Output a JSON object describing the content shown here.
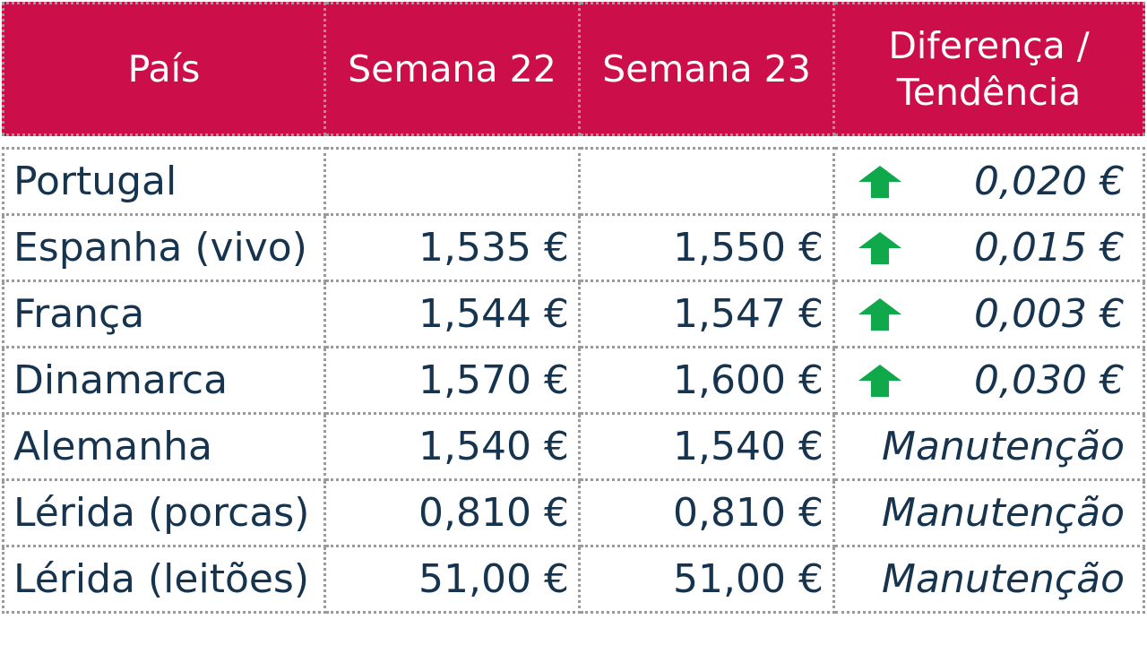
{
  "table": {
    "headers": {
      "country": "País",
      "week22": "Semana 22",
      "week23": "Semana 23",
      "trend_line1": "Diferença /",
      "trend_line2": "Tendência"
    },
    "rows": [
      {
        "country": "Portugal",
        "week22": "",
        "week23": "",
        "trend": "0,020 €",
        "direction": "up",
        "arrow_icon": "up-arrow-icon"
      },
      {
        "country": "Espanha (vivo)",
        "week22": "1,535 €",
        "week23": "1,550 €",
        "trend": "0,015 €",
        "direction": "up",
        "arrow_icon": "up-arrow-icon"
      },
      {
        "country": "França",
        "week22": "1,544 €",
        "week23": "1,547 €",
        "trend": "0,003 €",
        "direction": "up",
        "arrow_icon": "up-arrow-icon"
      },
      {
        "country": "Dinamarca",
        "week22": "1,570 €",
        "week23": "1,600 €",
        "trend": "0,030 €",
        "direction": "up",
        "arrow_icon": "up-arrow-icon"
      },
      {
        "country": "Alemanha",
        "week22": "1,540 €",
        "week23": "1,540 €",
        "trend": "Manutenção",
        "direction": "none"
      },
      {
        "country": "Lérida (porcas)",
        "week22": "0,810 €",
        "week23": "0,810 €",
        "trend": "Manutenção",
        "direction": "none"
      },
      {
        "country": "Lérida (leitões)",
        "week22": "51,00 €",
        "week23": "51,00 €",
        "trend": "Manutenção",
        "direction": "none"
      }
    ]
  },
  "colors": {
    "header_bg": "#cc0e4a",
    "header_text": "#ffffff",
    "body_text": "#17344f",
    "arrow_up": "#0fa84a",
    "border": "#9a9a9a"
  }
}
